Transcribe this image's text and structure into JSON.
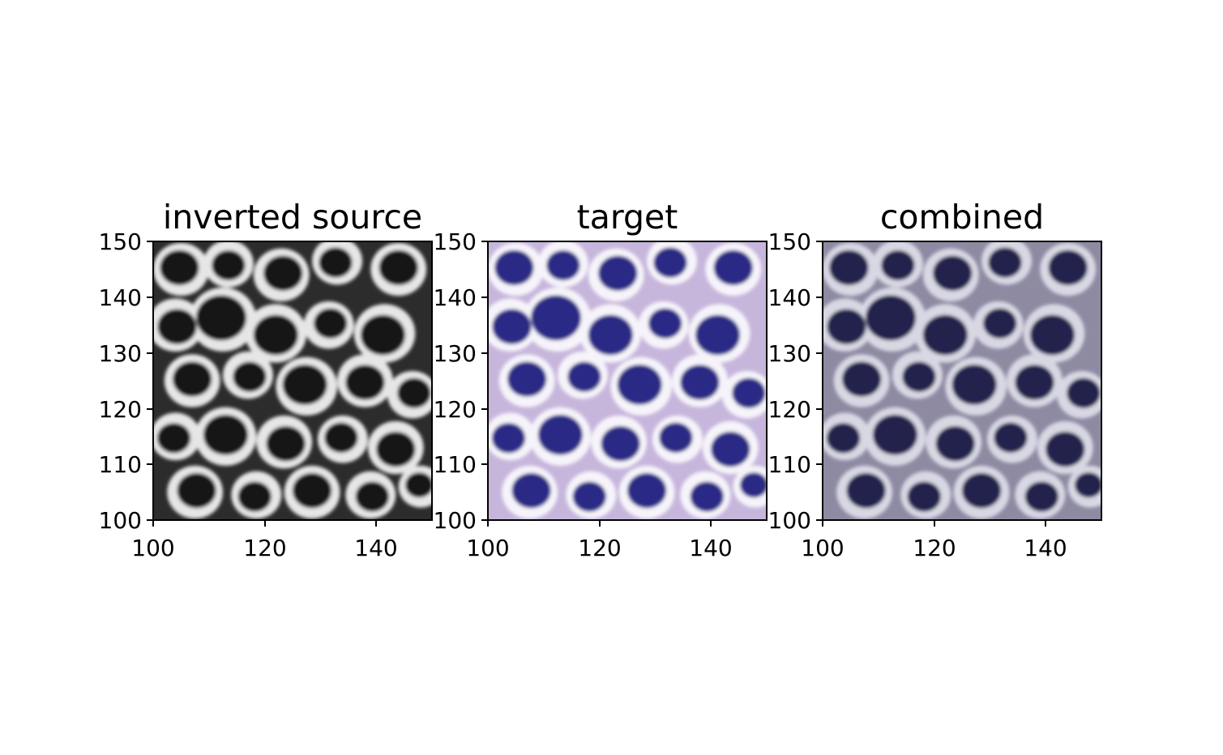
{
  "figure": {
    "panels": [
      {
        "title": "inverted source",
        "x_ticks": [
          "100",
          "120",
          "140"
        ],
        "y_ticks": [
          "100",
          "110",
          "120",
          "130",
          "140",
          "150"
        ],
        "colors": {
          "background": "#2c2c2c",
          "cell": "#121212",
          "membrane": "#e6e6e6"
        }
      },
      {
        "title": "target",
        "x_ticks": [
          "100",
          "120",
          "140"
        ],
        "y_ticks": [
          "100",
          "110",
          "120",
          "130",
          "140",
          "150"
        ],
        "colors": {
          "background": "#c7b6dc",
          "cell": "#2a2a86",
          "membrane": "#f6f4fa"
        }
      },
      {
        "title": "combined",
        "x_ticks": [
          "100",
          "120",
          "140"
        ],
        "y_ticks": [
          "100",
          "110",
          "120",
          "130",
          "140",
          "150"
        ],
        "colors": {
          "background": "#8e8aa2",
          "cell": "#24244e",
          "membrane": "#d8d8e4"
        }
      }
    ]
  }
}
